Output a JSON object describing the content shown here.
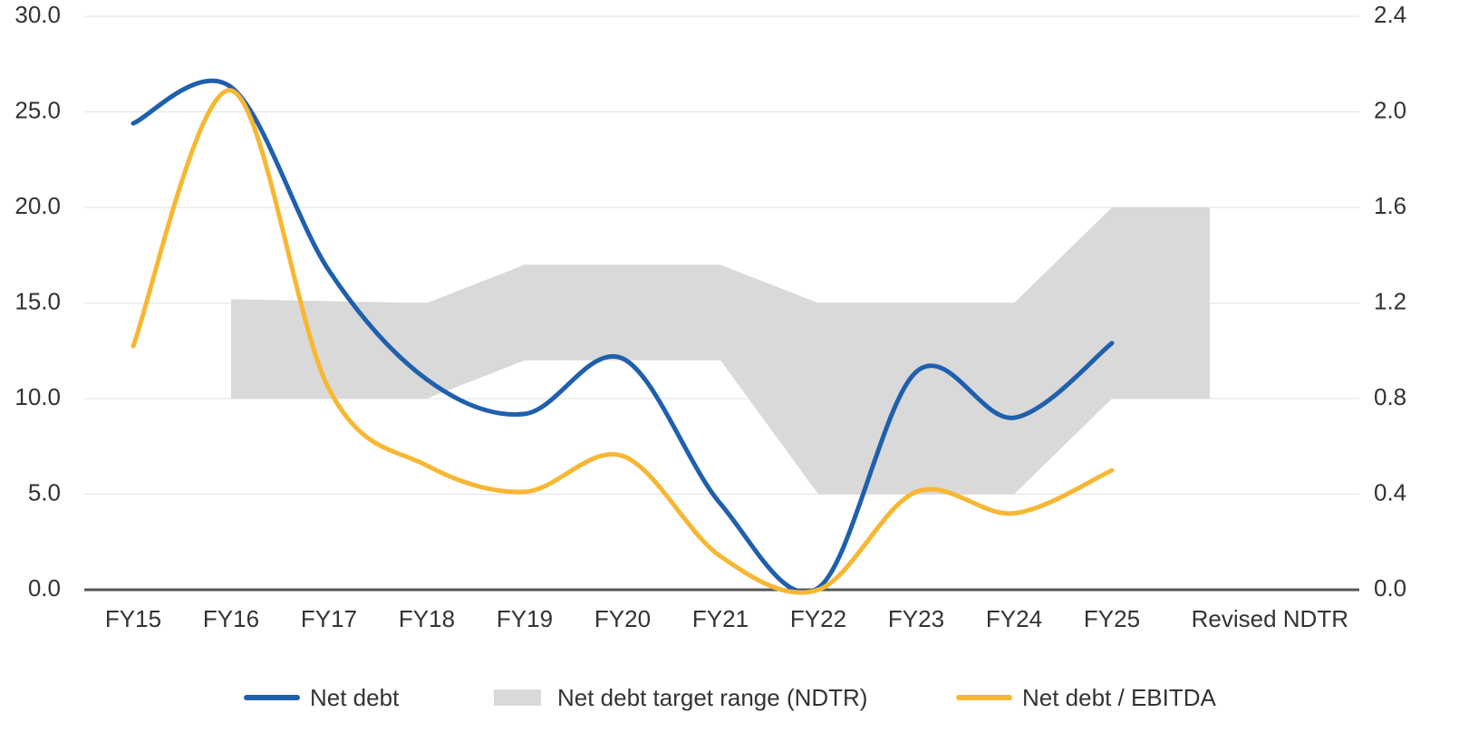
{
  "chart_data": {
    "type": "line",
    "categories": [
      "FY15",
      "FY16",
      "FY17",
      "FY18",
      "FY19",
      "FY20",
      "FY21",
      "FY22",
      "FY23",
      "FY24",
      "FY25",
      "Revised NDTR"
    ],
    "series": [
      {
        "name": "Net debt",
        "color": "#1f5fae",
        "values": [
          24.4,
          26.3,
          16.7,
          11.0,
          9.2,
          12.1,
          4.5,
          0.1,
          11.4,
          9.0,
          12.9,
          null
        ]
      },
      {
        "name": "Net debt target range (NDTR)",
        "color": "#d9d9d9",
        "type": "band",
        "low": [
          null,
          10.0,
          10.0,
          10.0,
          12.0,
          12.0,
          12.0,
          5.0,
          5.0,
          5.0,
          10.0,
          10.0
        ],
        "high": [
          null,
          15.2,
          15.1,
          15.0,
          17.0,
          17.0,
          17.0,
          15.0,
          15.0,
          15.0,
          20.0,
          20.0
        ]
      },
      {
        "name": "Net debt / EBITDA",
        "color": "#f7b733",
        "axis": "y2",
        "values": [
          1.02,
          2.09,
          0.84,
          0.52,
          0.41,
          0.56,
          0.14,
          0.0,
          0.41,
          0.32,
          0.5,
          null
        ]
      }
    ],
    "ylim": [
      0,
      30
    ],
    "yticks": [
      {
        "value": 0,
        "label": "0.0"
      },
      {
        "value": 5,
        "label": "5.0"
      },
      {
        "value": 10,
        "label": "10.0"
      },
      {
        "value": 15,
        "label": "15.0"
      },
      {
        "value": 20,
        "label": "20.0"
      },
      {
        "value": 25,
        "label": "25.0"
      },
      {
        "value": 30,
        "label": "30.0"
      }
    ],
    "y2lim": [
      0,
      2.4
    ],
    "y2ticks": [
      {
        "value": 0,
        "label": "0.0"
      },
      {
        "value": 0.4,
        "label": "0.4"
      },
      {
        "value": 0.8,
        "label": "0.8"
      },
      {
        "value": 1.2,
        "label": "1.2"
      },
      {
        "value": 1.6,
        "label": "1.6"
      },
      {
        "value": 2.0,
        "label": "2.0"
      },
      {
        "value": 2.4,
        "label": "2.4"
      }
    ],
    "grid": true,
    "legend": "bottom"
  }
}
